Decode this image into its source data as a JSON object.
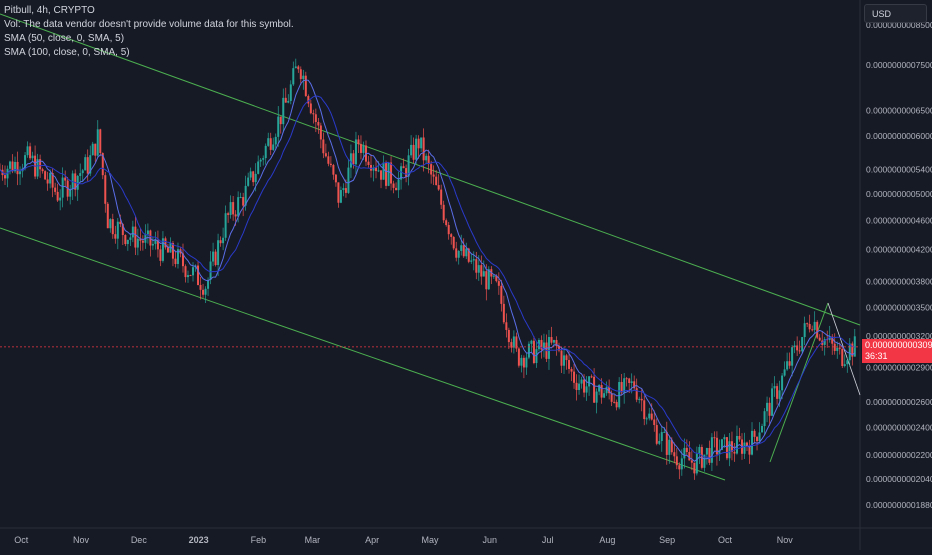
{
  "legend": {
    "symbol_line": "Pitbull, 4h, CRYPTO",
    "volume_note": "Vol: The data vendor doesn't provide volume data for this symbol.",
    "sma1": "SMA (50, close, 0, SMA, 5)",
    "sma2": "SMA (100, close, 0, SMA, 5)"
  },
  "currency": "USD",
  "last_price": {
    "value": "0.0000000003092",
    "countdown": "36:31"
  },
  "colors": {
    "background": "#161a25",
    "up": "#26a69a",
    "down": "#ef5350",
    "sma_fast": "#5b6ee8",
    "sma_slow": "#2a3ac9",
    "trendline": "#4caf50",
    "price_line": "#f23645"
  },
  "chart_data": {
    "type": "candlestick",
    "title": "Pitbull, 4h, CRYPTO",
    "y_scale": "log",
    "ylim": [
      1.75e-10,
      9.2e-10
    ],
    "y_ticks": [
      "0.0000000008500",
      "0.0000000007500",
      "0.0000000006500",
      "0.0000000006000",
      "0.0000000005400",
      "0.0000000005000",
      "0.0000000004600",
      "0.0000000004200",
      "0.0000000003800",
      "0.0000000003500",
      "0.0000000003200",
      "0.0000000002900",
      "0.0000000002600",
      "0.0000000002400",
      "0.0000000002200",
      "0.0000000002040",
      "0.0000000001880"
    ],
    "x_ticks": [
      "Oct",
      "Nov",
      "Dec",
      "2023",
      "Feb",
      "Mar",
      "Apr",
      "May",
      "Jun",
      "Jul",
      "Aug",
      "Sep",
      "Oct",
      "Nov"
    ],
    "x_range": [
      "2022-09-20",
      "2023-12-10"
    ],
    "series": [
      {
        "name": "Pitbull",
        "points": [
          [
            "2022-09-20",
            5.4e-10
          ],
          [
            "2022-10-05",
            5.6e-10
          ],
          [
            "2022-10-20",
            5e-10
          ],
          [
            "2022-11-05",
            5.5e-10
          ],
          [
            "2022-11-10",
            6e-10
          ],
          [
            "2022-11-15",
            4.6e-10
          ],
          [
            "2022-11-25",
            4.4e-10
          ],
          [
            "2022-12-05",
            4.3e-10
          ],
          [
            "2022-12-20",
            4.1e-10
          ],
          [
            "2023-01-05",
            3.75e-10
          ],
          [
            "2023-01-15",
            4.6e-10
          ],
          [
            "2023-01-25",
            5e-10
          ],
          [
            "2023-02-05",
            5.8e-10
          ],
          [
            "2023-02-15",
            6.6e-10
          ],
          [
            "2023-02-22",
            7.6e-10
          ],
          [
            "2023-03-05",
            6e-10
          ],
          [
            "2023-03-15",
            4.9e-10
          ],
          [
            "2023-03-25",
            5.9e-10
          ],
          [
            "2023-04-05",
            5.4e-10
          ],
          [
            "2023-04-15",
            5.2e-10
          ],
          [
            "2023-04-25",
            5.9e-10
          ],
          [
            "2023-05-05",
            5e-10
          ],
          [
            "2023-05-15",
            4.2e-10
          ],
          [
            "2023-05-25",
            3.95e-10
          ],
          [
            "2023-06-05",
            3.7e-10
          ],
          [
            "2023-06-15",
            3e-10
          ],
          [
            "2023-06-25",
            3.05e-10
          ],
          [
            "2023-07-05",
            3.1e-10
          ],
          [
            "2023-07-15",
            2.8e-10
          ],
          [
            "2023-07-25",
            2.7e-10
          ],
          [
            "2023-08-05",
            2.65e-10
          ],
          [
            "2023-08-15",
            2.75e-10
          ],
          [
            "2023-08-25",
            2.4e-10
          ],
          [
            "2023-09-05",
            2.2e-10
          ],
          [
            "2023-09-15",
            2.15e-10
          ],
          [
            "2023-09-25",
            2.25e-10
          ],
          [
            "2023-10-05",
            2.25e-10
          ],
          [
            "2023-10-15",
            2.3e-10
          ],
          [
            "2023-10-25",
            2.6e-10
          ],
          [
            "2023-11-05",
            3e-10
          ],
          [
            "2023-11-15",
            3.4e-10
          ],
          [
            "2023-11-20",
            3.2e-10
          ],
          [
            "2023-11-30",
            3e-10
          ],
          [
            "2023-12-05",
            3.09e-10
          ]
        ]
      }
    ]
  }
}
